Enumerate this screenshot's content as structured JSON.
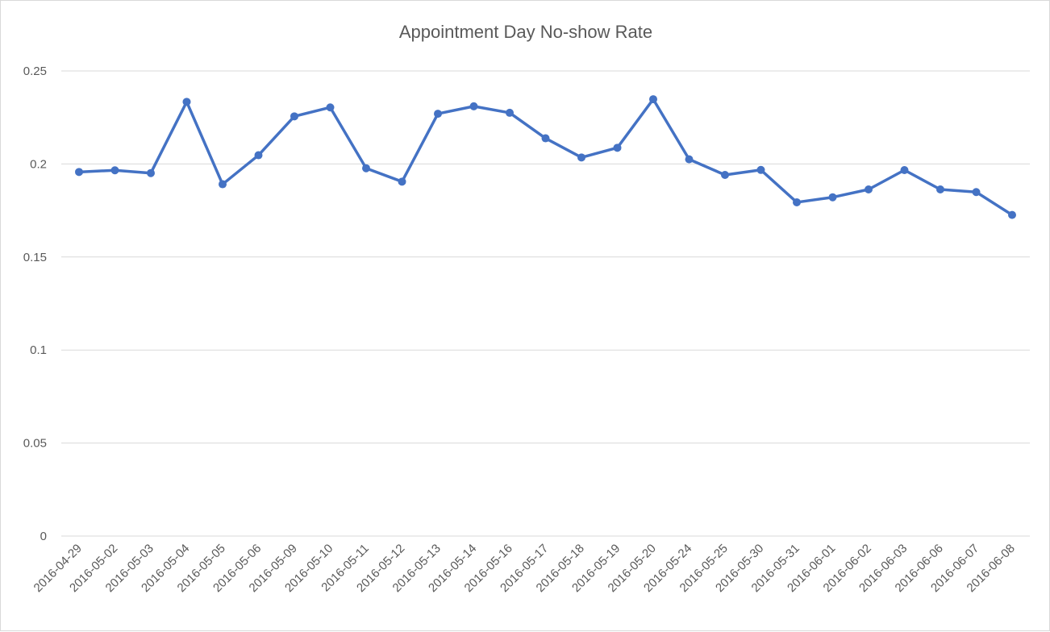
{
  "chart_data": {
    "type": "line",
    "title": "Appointment Day No-show Rate",
    "xlabel": "",
    "ylabel": "",
    "ylim": [
      0,
      0.25
    ],
    "yticks": [
      "0",
      "0.05",
      "0.1",
      "0.15",
      "0.2",
      "0.25"
    ],
    "grid": true,
    "legend": "none",
    "line_color": "#4472C4",
    "categories": [
      "2016-04-29",
      "2016-05-02",
      "2016-05-03",
      "2016-05-04",
      "2016-05-05",
      "2016-05-06",
      "2016-05-09",
      "2016-05-10",
      "2016-05-11",
      "2016-05-12",
      "2016-05-13",
      "2016-05-14",
      "2016-05-16",
      "2016-05-17",
      "2016-05-18",
      "2016-05-19",
      "2016-05-20",
      "2016-05-24",
      "2016-05-25",
      "2016-05-30",
      "2016-05-31",
      "2016-06-01",
      "2016-06-02",
      "2016-06-03",
      "2016-06-06",
      "2016-06-07",
      "2016-06-08"
    ],
    "values": [
      0.1957,
      0.1966,
      0.1951,
      0.2334,
      0.1891,
      0.2047,
      0.2256,
      0.2304,
      0.1977,
      0.1905,
      0.227,
      0.231,
      0.2275,
      0.2138,
      0.2035,
      0.2087,
      0.2348,
      0.2025,
      0.1941,
      0.1968,
      0.1794,
      0.1821,
      0.1863,
      0.1967,
      0.1863,
      0.1849,
      0.1726
    ]
  }
}
